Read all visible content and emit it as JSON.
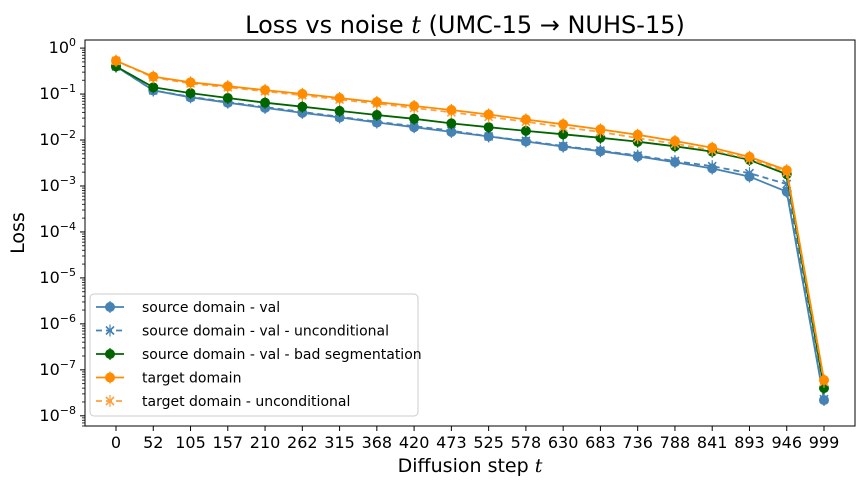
{
  "chart_data": {
    "type": "line",
    "title_prefix": "Loss vs noise ",
    "title_var": "t",
    "title_suffix": " (UMC-15 → NUHS-15)",
    "xlabel_prefix": "Diffusion step ",
    "xlabel_var": "t",
    "ylabel": "Loss",
    "yscale": "log",
    "ylim": [
      6e-09,
      1.5
    ],
    "yticks": [
      {
        "value": 1,
        "base": "10",
        "exp": "0"
      },
      {
        "value": 0.1,
        "base": "10",
        "exp": "−1"
      },
      {
        "value": 0.01,
        "base": "10",
        "exp": "−2"
      },
      {
        "value": 0.001,
        "base": "10",
        "exp": "−3"
      },
      {
        "value": 0.0001,
        "base": "10",
        "exp": "−4"
      },
      {
        "value": 1e-05,
        "base": "10",
        "exp": "−5"
      },
      {
        "value": 1e-06,
        "base": "10",
        "exp": "−6"
      },
      {
        "value": 1e-07,
        "base": "10",
        "exp": "−7"
      },
      {
        "value": 1e-08,
        "base": "10",
        "exp": "−8"
      }
    ],
    "x": [
      "0",
      "52",
      "105",
      "157",
      "210",
      "262",
      "315",
      "368",
      "420",
      "473",
      "525",
      "578",
      "630",
      "683",
      "736",
      "788",
      "841",
      "893",
      "946",
      "999"
    ],
    "grid": false,
    "legend_position": "lower-left",
    "series": [
      {
        "name": "source domain - val",
        "color": "#4682b4",
        "dashed": false,
        "marker": "circle",
        "values": [
          0.4,
          0.12,
          0.085,
          0.065,
          0.05,
          0.039,
          0.031,
          0.024,
          0.019,
          0.015,
          0.012,
          0.0093,
          0.0072,
          0.0057,
          0.0044,
          0.0033,
          0.0024,
          0.0016,
          0.00075,
          2.2e-08
        ]
      },
      {
        "name": "source domain - val - unconditional",
        "color": "#4682b4",
        "dashed": true,
        "marker": "x",
        "values": [
          0.4,
          0.12,
          0.087,
          0.067,
          0.052,
          0.041,
          0.032,
          0.025,
          0.02,
          0.016,
          0.012,
          0.0096,
          0.0074,
          0.0059,
          0.0046,
          0.0035,
          0.0027,
          0.0019,
          0.0011,
          2.3e-08
        ]
      },
      {
        "name": "source domain - val - bad segmentation",
        "color": "#006400",
        "dashed": false,
        "marker": "circle",
        "values": [
          0.4,
          0.14,
          0.105,
          0.082,
          0.065,
          0.053,
          0.043,
          0.035,
          0.029,
          0.023,
          0.019,
          0.0158,
          0.0133,
          0.0112,
          0.0092,
          0.0073,
          0.0056,
          0.0037,
          0.0018,
          4e-08
        ]
      },
      {
        "name": "target domain",
        "color": "#ff8c00",
        "dashed": false,
        "marker": "circle",
        "values": [
          0.53,
          0.24,
          0.18,
          0.148,
          0.122,
          0.101,
          0.082,
          0.067,
          0.055,
          0.045,
          0.036,
          0.028,
          0.022,
          0.017,
          0.013,
          0.0095,
          0.0068,
          0.0043,
          0.0022,
          6e-08
        ]
      },
      {
        "name": "target domain - unconditional",
        "color": "#ffa040",
        "dashed": true,
        "marker": "x",
        "values": [
          0.53,
          0.23,
          0.17,
          0.14,
          0.115,
          0.094,
          0.076,
          0.062,
          0.05,
          0.04,
          0.032,
          0.025,
          0.019,
          0.015,
          0.011,
          0.0083,
          0.006,
          0.0039,
          0.002,
          5.5e-08
        ]
      }
    ]
  }
}
